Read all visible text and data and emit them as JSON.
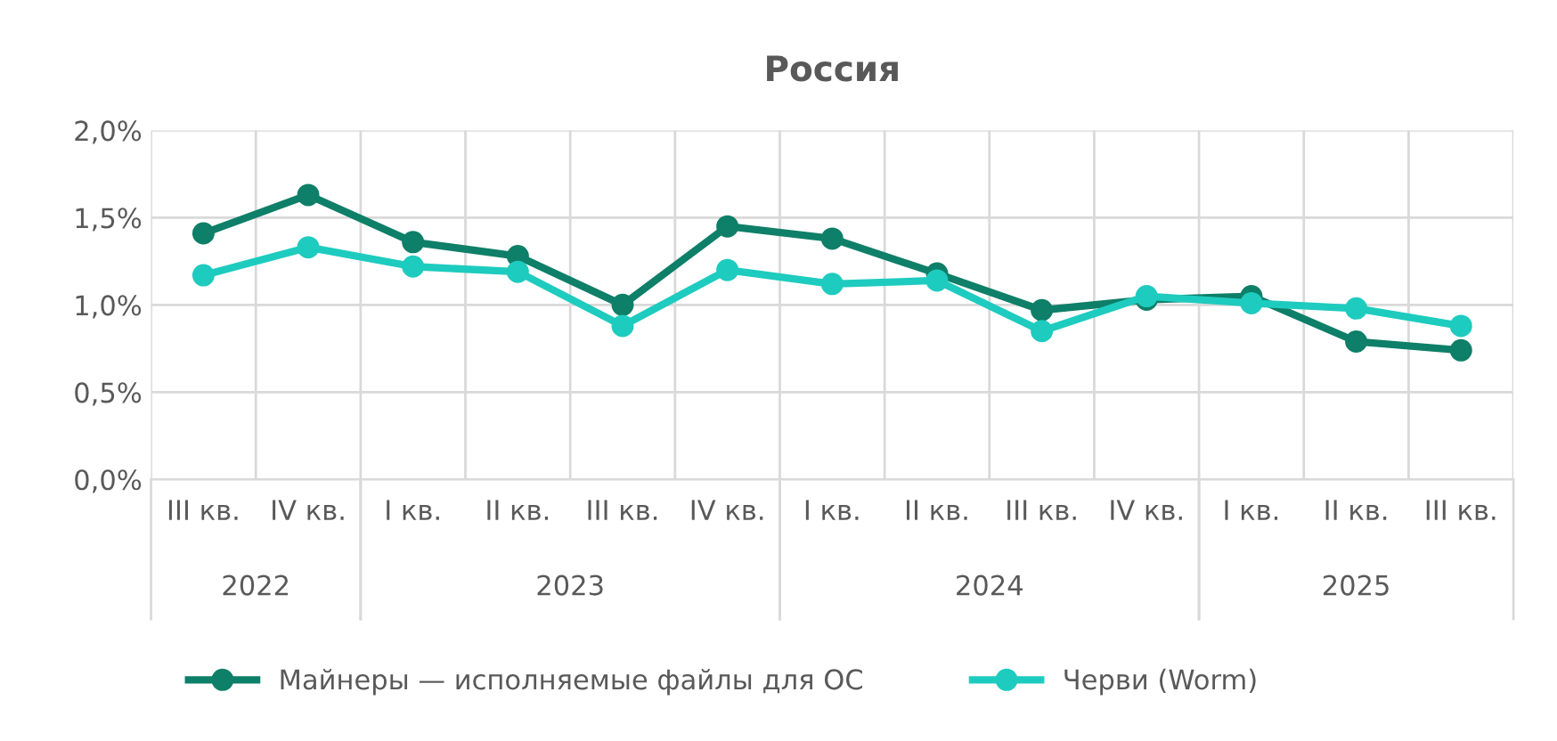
{
  "chart_data": {
    "type": "line",
    "title": "Россия",
    "categories": [
      "III кв.",
      "IV кв.",
      "I кв.",
      "II кв.",
      "III кв.",
      "IV кв.",
      "I кв.",
      "II кв.",
      "III кв.",
      "IV кв.",
      "I кв.",
      "II кв.",
      "III кв."
    ],
    "annotations": [
      "2022",
      "2023",
      "2024",
      "2025"
    ],
    "series": [
      {
        "name": "Майнеры — исполняемые файлы для ОС",
        "color": "#0e7f68",
        "values": [
          1.41,
          1.63,
          1.36,
          1.28,
          1.0,
          1.45,
          1.38,
          1.18,
          0.97,
          1.03,
          1.05,
          0.79,
          0.74
        ]
      },
      {
        "name": "Черви (Worm)",
        "color": "#1ecbbf",
        "values": [
          1.17,
          1.33,
          1.22,
          1.19,
          0.88,
          1.2,
          1.12,
          1.14,
          0.85,
          1.05,
          1.01,
          0.98,
          0.88
        ]
      }
    ],
    "ylim": [
      0,
      2.0
    ],
    "yticks": [
      {
        "value": 0,
        "label": "0,0%"
      },
      {
        "value": 0.5,
        "label": "0,5%"
      },
      {
        "value": 1.0,
        "label": "1,0%"
      },
      {
        "value": 1.5,
        "label": "1,5%"
      },
      {
        "value": 2.0,
        "label": "2,0%"
      }
    ],
    "grid": true,
    "legend": "bottom",
    "marker": "circle",
    "line_style": "solid"
  }
}
